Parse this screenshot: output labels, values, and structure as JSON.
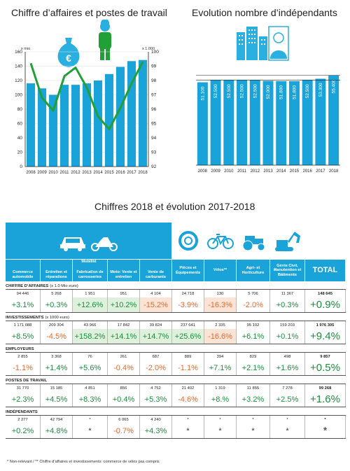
{
  "chart1": {
    "title": "Chiffre d’affaires et postes de travail",
    "left_unit": "x mio",
    "right_unit": "x 1.000",
    "bar_color": "#1aa3d9",
    "line_color": "#22a038",
    "icon_color": "#2ab0e0"
  },
  "chart2": {
    "title": "Evolution nombre d’indépendants",
    "bar_color": "#1aa3d9"
  },
  "table": {
    "title": "Chiffres 2018 et évolution 2017-2018",
    "group_label": "Mobilité",
    "columns": [
      "Commerce automobile",
      "Entretien et réparations",
      "Fabrication de carrosseries",
      "Moto: Vente et entretien",
      "Vente de carburants",
      "Pièces et Équipements",
      "Vélos**",
      "Agri- et Horticulture",
      "Génie Civil, Manutention et Bâtiments"
    ],
    "total_label": "TOTAL",
    "sections": [
      {
        "title": "CHIFFRE D’AFFAIRES",
        "unit": "(x 1.0 Mio euro)",
        "values": [
          "94 446",
          "5 268",
          "1 951",
          "951",
          "4 104",
          "24 718",
          "130",
          "5 706",
          "11 367"
        ],
        "total": "148 645",
        "pct": [
          "+3.1%",
          "+0.3%",
          "+12.6%",
          "+10.2%",
          "-15.2%",
          "-3.9%",
          "-16.3%",
          "-2.0%",
          "+0.3%"
        ],
        "total_pct": "+0.9%"
      },
      {
        "title": "INVESTISSEMENTS",
        "unit": "(x 1000 euro)",
        "values": [
          "1 171 088",
          "209 304",
          "43 966",
          "17 842",
          "39 824",
          "237 641",
          "2 335",
          "95 102",
          "159 203"
        ],
        "total": "1 976 305",
        "pct": [
          "+8.5%",
          "-4.5%",
          "+158.2%",
          "+14.1%",
          "+14.7%",
          "+25.6%",
          "-16.6%",
          "+6.1%",
          "+0.1%"
        ],
        "total_pct": "+9.4%"
      },
      {
        "title": "EMPLOYEURS",
        "unit": "",
        "values": [
          "2 855",
          "3 368",
          "76",
          "261",
          "687",
          "889",
          "394",
          "829",
          "498"
        ],
        "total": "9 857",
        "pct": [
          "-1.1%",
          "+1.4%",
          "+5.6%",
          "-0.4%",
          "-2.0%",
          "-1.1%",
          "+7.1%",
          "+2.1%",
          "+1.6%"
        ],
        "total_pct": "+0.5%"
      },
      {
        "title": "POSTES DE TRAVAIL",
        "unit": "",
        "values": [
          "31 770",
          "15 185",
          "4 851",
          "856",
          "4 752",
          "21 402",
          "1 319",
          "11 855",
          "7 278"
        ],
        "total": "99 268",
        "pct": [
          "+2.3%",
          "+4.5%",
          "+8.3%",
          "+0.4%",
          "+5.3%",
          "-4.6%",
          "+8.%",
          "+3.2%",
          "+2.5%"
        ],
        "total_pct": "+1.6%"
      },
      {
        "title": "INDÉPENDANTS",
        "unit": "",
        "values": [
          "2 277",
          "42 794",
          "*",
          "6 065",
          "4 240",
          "*",
          "*",
          "*",
          "*"
        ],
        "total": "*",
        "pct": [
          "+0.2%",
          "+4.8%",
          "*",
          "-0.7%",
          "+4.3%",
          "*",
          "*",
          "*",
          "*"
        ],
        "total_pct": "*"
      }
    ],
    "highlight_colors": {
      "pos": "#dff0dc",
      "neg": "#fbe3d6",
      "pos_text": "#1a8f3c",
      "neg_text": "#e8692f"
    }
  },
  "footnote": "*  Non-relevant    /    **  Chiffre d’affaires et investissements: commerce de vélos pas compris",
  "chart_data": [
    {
      "type": "bar",
      "title": "Chiffre d’affaires et postes de travail",
      "categories": [
        "2008",
        "2009",
        "2010",
        "2011",
        "2012",
        "2013",
        "2014",
        "2015",
        "2016",
        "2017",
        "2018"
      ],
      "series": [
        {
          "values": [
            116,
            109,
            100,
            114,
            114,
            116,
            120,
            129,
            139,
            147,
            148.6
          ]
        },
        {
          "values": [
            99.2,
            96.8,
            95.9,
            98.3,
            98.9,
            97.5,
            95.5,
            94.6,
            96.1,
            97.8,
            99.3
          ]
        }
      ],
      "xlabel": "",
      "ylabel": "x mio",
      "y2label": "x 1.000",
      "ylim": [
        0,
        160
      ],
      "y2lim": [
        92,
        100
      ],
      "yticks": [
        "0",
        "20",
        "40",
        "60",
        "80",
        "100",
        "120",
        "140",
        "160"
      ],
      "y2ticks": [
        "92",
        "93",
        "94",
        "95",
        "96",
        "97",
        "98",
        "99",
        "100"
      ]
    },
    {
      "type": "bar",
      "title": "Evolution nombre d’indépendants",
      "categories": [
        "2008",
        "2009",
        "2010",
        "2011",
        "2012",
        "2013",
        "2014",
        "2015",
        "2016",
        "2017",
        "2018"
      ],
      "values": [
        51100,
        52500,
        52500,
        52500,
        52500,
        52000,
        51800,
        51800,
        52500,
        53300,
        55400
      ],
      "labels": [
        "51.100",
        "52.500",
        "52.500",
        "52.500",
        "52.500",
        "52.000",
        "51.800",
        "51.800",
        "52.500",
        "53.300",
        "55.400"
      ],
      "ylim": [
        0,
        63000
      ]
    }
  ]
}
